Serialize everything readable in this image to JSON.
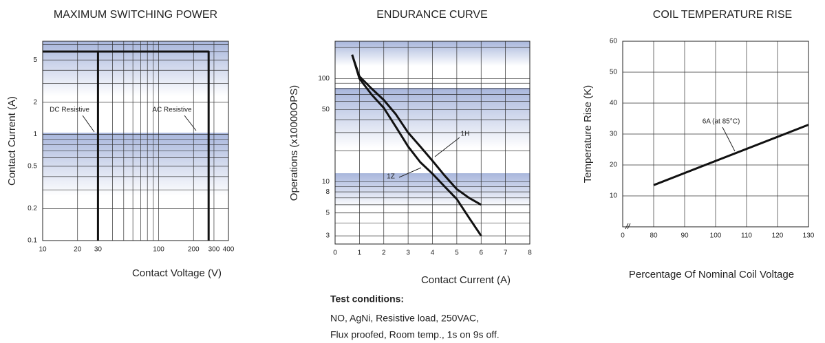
{
  "chart_data": [
    {
      "type": "line",
      "title": "MAXIMUM SWITCHING POWER",
      "xlabel": "Contact Voltage (V)",
      "ylabel": "Contact Current (A)",
      "xscale": "log",
      "yscale": "log",
      "xlim": [
        10,
        400
      ],
      "ylim": [
        0.1,
        7.5
      ],
      "xticks": [
        10,
        20,
        30,
        100,
        200,
        300,
        400
      ],
      "yticks": [
        0.1,
        0.2,
        0.5,
        1,
        2,
        5
      ],
      "x_minor_ticks": [
        40,
        50,
        60,
        70,
        80,
        90
      ],
      "y_minor_ticks": [
        0.3,
        0.4,
        0.6,
        0.7,
        0.8,
        0.9,
        3,
        4,
        6,
        7
      ],
      "grid": true,
      "series": [
        {
          "name": "DC Resistive",
          "color": "#111111",
          "x": [
            10,
            30,
            30
          ],
          "values": [
            6,
            6,
            0.1
          ]
        },
        {
          "name": "AC Resistive",
          "color": "#111111",
          "x": [
            10,
            270,
            270
          ],
          "values": [
            6,
            6,
            0.1
          ]
        }
      ]
    },
    {
      "type": "line",
      "title": "ENDURANCE CURVE",
      "xlabel": "Contact Current (A)",
      "ylabel": "Operations (x10000OPS)",
      "xscale": "linear",
      "yscale": "log",
      "xlim": [
        0,
        8
      ],
      "ylim": [
        2.5,
        230
      ],
      "xticks": [
        0,
        1,
        2,
        3,
        4,
        5,
        6,
        7,
        8
      ],
      "yticks": [
        3,
        5,
        8,
        10,
        50,
        100
      ],
      "y_minor_ticks": [
        4,
        6,
        7,
        9,
        20,
        30,
        40,
        60,
        70,
        80,
        90,
        200
      ],
      "grid": true,
      "series": [
        {
          "name": "1H",
          "color": "#111111",
          "x": [
            0.7,
            1,
            1.5,
            2,
            2.5,
            3,
            3.5,
            4,
            4.5,
            5,
            5.5,
            6
          ],
          "values": [
            170,
            105,
            80,
            62,
            45,
            30,
            22,
            16,
            11.5,
            8.5,
            7,
            6
          ]
        },
        {
          "name": "1Z",
          "color": "#111111",
          "x": [
            0.7,
            1,
            1.5,
            2,
            2.5,
            3,
            3.5,
            4,
            4.5,
            5,
            5.5,
            6
          ],
          "values": [
            170,
            100,
            70,
            52,
            34,
            22,
            15.5,
            12,
            9,
            6.8,
            4.5,
            3
          ]
        }
      ]
    },
    {
      "type": "line",
      "title": "COIL TEMPERATURE RISE",
      "xlabel": "Percentage Of Nominal Coil Voltage",
      "ylabel": "Temperature Rise (K)",
      "xscale": "linear",
      "yscale": "linear",
      "xlim": [
        0,
        130
      ],
      "x_break": [
        0,
        80
      ],
      "ylim": [
        0,
        60
      ],
      "xticks": [
        0,
        80,
        90,
        100,
        110,
        120,
        130
      ],
      "yticks": [
        10,
        20,
        30,
        40,
        50,
        60
      ],
      "grid": true,
      "series": [
        {
          "name": "6A (at 85°C)",
          "color": "#111111",
          "x": [
            80,
            130
          ],
          "values": [
            13.5,
            33
          ]
        }
      ]
    }
  ],
  "test_conditions": {
    "title": "Test conditions:",
    "lines": [
      "NO, AgNi, Resistive load, 250VAC,",
      "Flux proofed, Room temp., 1s on 9s off."
    ]
  }
}
